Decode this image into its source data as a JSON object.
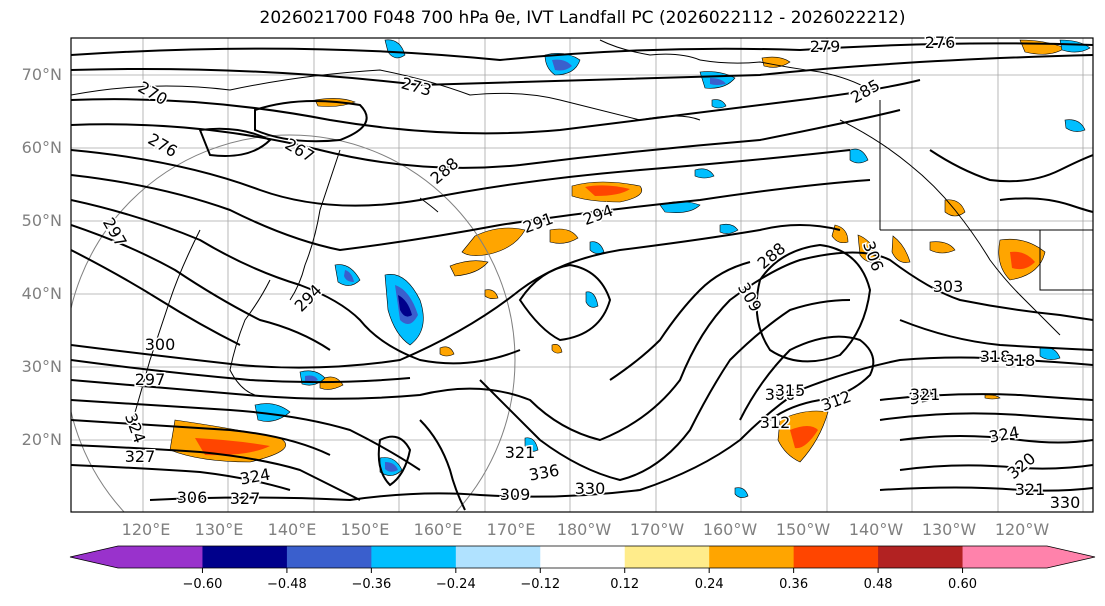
{
  "title": "2026021700 F048 700 hPa θe, IVT Landfall PC (2026022112 - 2026022212)",
  "map": {
    "lat_ticks": [
      "70°N",
      "60°N",
      "50°N",
      "40°N",
      "30°N",
      "20°N"
    ],
    "lon_ticks": [
      "120°E",
      "130°E",
      "140°E",
      "150°E",
      "160°E",
      "170°E",
      "180°W",
      "170°W",
      "160°W",
      "150°W",
      "140°W",
      "130°W",
      "120°W"
    ],
    "contour_labels": [
      "279",
      "276",
      "273",
      "270",
      "285",
      "276",
      "267",
      "288",
      "294",
      "297",
      "291",
      "294",
      "288",
      "309",
      "306",
      "303",
      "300",
      "297",
      "306",
      "312",
      "315",
      "318",
      "320",
      "324",
      "327",
      "321",
      "324",
      "330",
      "336",
      "327",
      "306",
      "309",
      "312",
      "315",
      "321",
      "318",
      "324",
      "321",
      "330"
    ]
  },
  "colorbar": {
    "ticks": [
      "−0.60",
      "−0.48",
      "−0.36",
      "−0.24",
      "−0.12",
      "0.12",
      "0.24",
      "0.36",
      "0.48",
      "0.60"
    ],
    "colors": [
      "#9932cc",
      "#00008b",
      "#3a5fcd",
      "#00bfff",
      "#b0e2ff",
      "#ffffff",
      "#ffec8b",
      "#ffa500",
      "#ff4500",
      "#b22222",
      "#ff82ab"
    ],
    "extend_low_color": "#9932cc",
    "extend_high_color": "#ff82ab"
  },
  "colors": {
    "contour": "#000000",
    "grid": "#808080",
    "tick_label": "#808080"
  }
}
